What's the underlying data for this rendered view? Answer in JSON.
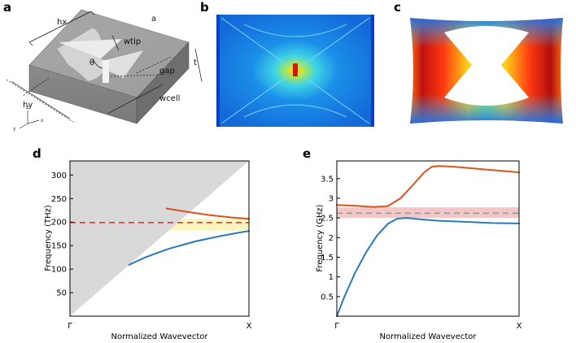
{
  "panels": {
    "a": {
      "label": "a",
      "annotations": {
        "hx": "hx",
        "a": "a",
        "wtip": "wtip",
        "theta": "θ",
        "t": "t",
        "gap": "gap",
        "hy": "hy",
        "wcell": "wcell",
        "axis_z": "z",
        "axis_y": "y",
        "axis_x": "x"
      }
    },
    "b": {
      "label": "b"
    },
    "c": {
      "label": "c"
    },
    "d": {
      "label": "d"
    },
    "e": {
      "label": "e"
    }
  },
  "colors": {
    "band_lower": "#2a7ab9",
    "band_upper": "#d9541a",
    "light_cone": "#d9d9d9",
    "gap_d": "#fbf6c0",
    "gap_e": "#f5c6c8",
    "dashed_d": "#e8352a",
    "dashed_e": "#9a9a9a"
  },
  "chart_data": [
    {
      "id": "d",
      "type": "line",
      "xlabel": "Normalized Wavevector",
      "ylabel": "Frequency (THz)",
      "ylim": [
        0,
        330
      ],
      "yticks": [
        50,
        100,
        150,
        200,
        250,
        300
      ],
      "xticks": [
        "Γ",
        "X"
      ],
      "light_cone": {
        "x": [
          0,
          1
        ],
        "y": [
          0,
          330
        ]
      },
      "bandgap": [
        181,
        207
      ],
      "dashed_level": 199,
      "series": [
        {
          "name": "lower band",
          "x": [
            0.33,
            0.42,
            0.55,
            0.7,
            0.85,
            0.95,
            1.0
          ],
          "y": [
            109,
            125,
            143,
            159,
            171,
            178,
            181
          ]
        },
        {
          "name": "upper band",
          "x": [
            0.54,
            0.65,
            0.78,
            0.9,
            1.0
          ],
          "y": [
            229,
            222,
            215,
            210,
            207
          ]
        }
      ]
    },
    {
      "id": "e",
      "type": "line",
      "xlabel": "Normalized Wavevector",
      "ylabel": "Frequency (GHz)",
      "ylim": [
        0,
        3.95
      ],
      "yticks": [
        0.5,
        1,
        1.5,
        2,
        2.5,
        3,
        3.5
      ],
      "xticks": [
        "Γ",
        "X"
      ],
      "bandgap": [
        2.5,
        2.77
      ],
      "dashed_level": 2.62,
      "series": [
        {
          "name": "lower band",
          "x": [
            0,
            0.04,
            0.1,
            0.16,
            0.22,
            0.28,
            0.33,
            0.38,
            0.45,
            0.55,
            0.7,
            0.85,
            1.0
          ],
          "y": [
            0,
            0.48,
            1.1,
            1.62,
            2.05,
            2.35,
            2.48,
            2.5,
            2.47,
            2.43,
            2.4,
            2.37,
            2.36
          ]
        },
        {
          "name": "upper band",
          "x": [
            0,
            0.1,
            0.2,
            0.28,
            0.35,
            0.42,
            0.48,
            0.52,
            0.56,
            0.65,
            0.8,
            1.0
          ],
          "y": [
            2.83,
            2.81,
            2.78,
            2.8,
            3.0,
            3.35,
            3.66,
            3.8,
            3.82,
            3.8,
            3.74,
            3.66
          ]
        }
      ]
    }
  ]
}
